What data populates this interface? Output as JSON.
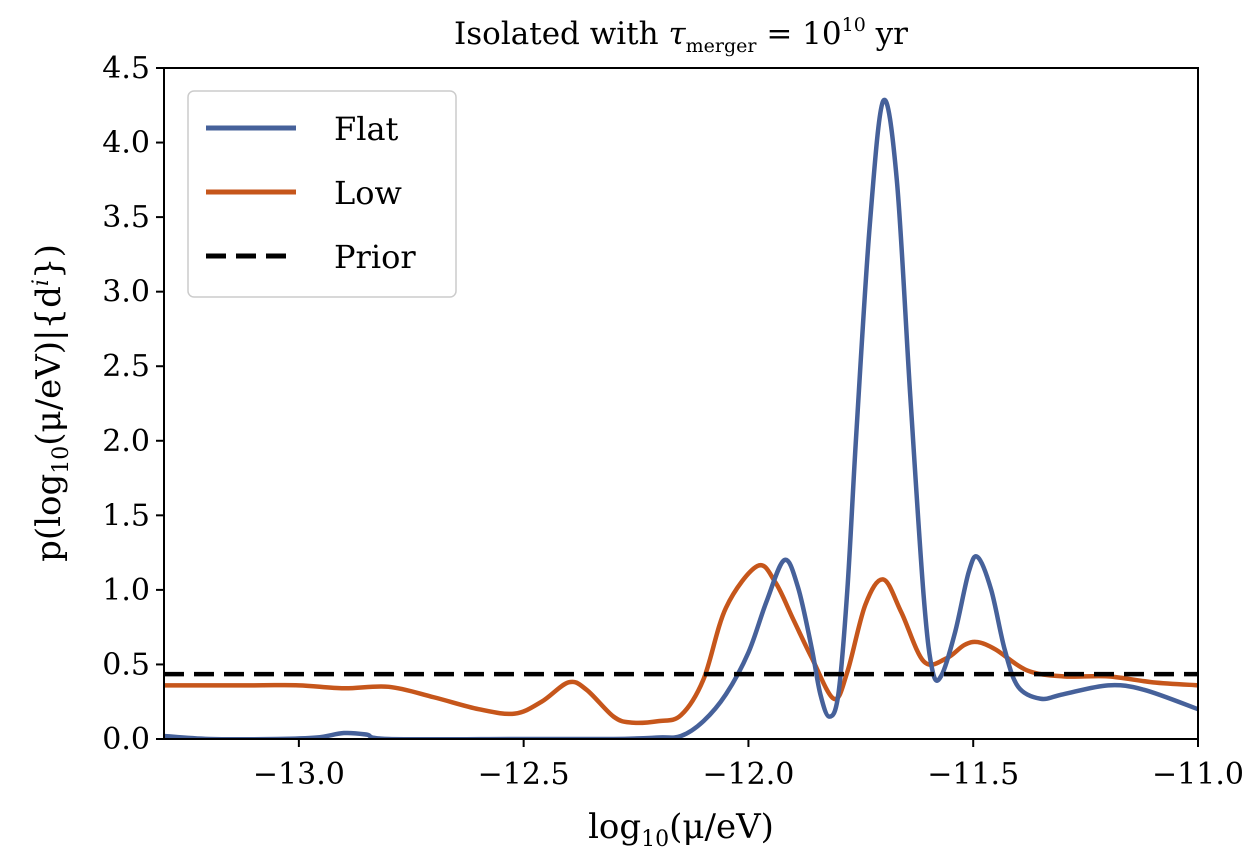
{
  "chart_data": {
    "type": "line",
    "title": {
      "prefix": "Isolated with ",
      "tau": "τ",
      "tau_sub": "merger",
      "eq": " = 10",
      "exp": "10",
      "unit": " yr"
    },
    "xlabel": {
      "pre": "log",
      "sub": "10",
      "post": "(μ/eV)"
    },
    "ylabel": {
      "pre": "p(log",
      "sub": "10",
      "mid": "(μ/eV)|{d",
      "sup": "i",
      "post": "})"
    },
    "xlim": [
      -13.3,
      -11.0
    ],
    "ylim": [
      0.0,
      4.5
    ],
    "xticks": [
      -13.0,
      -12.5,
      -12.0,
      -11.5,
      -11.0
    ],
    "xtick_labels": [
      "−13.0",
      "−12.5",
      "−12.0",
      "−11.5",
      "−11.0"
    ],
    "yticks": [
      0.0,
      0.5,
      1.0,
      1.5,
      2.0,
      2.5,
      3.0,
      3.5,
      4.0,
      4.5
    ],
    "ytick_labels": [
      "0.0",
      "0.5",
      "1.0",
      "1.5",
      "2.0",
      "2.5",
      "3.0",
      "3.5",
      "4.0",
      "4.5"
    ],
    "grid": false,
    "legend_position": "top-left",
    "series": [
      {
        "name": "Flat",
        "color": "#46619a",
        "style": "solid",
        "points": [
          [
            -13.3,
            0.02
          ],
          [
            -13.2,
            0.0
          ],
          [
            -13.05,
            0.0
          ],
          [
            -12.96,
            0.01
          ],
          [
            -12.9,
            0.04
          ],
          [
            -12.85,
            0.03
          ],
          [
            -12.8,
            0.0
          ],
          [
            -12.5,
            0.0
          ],
          [
            -12.3,
            0.0
          ],
          [
            -12.2,
            0.01
          ],
          [
            -12.15,
            0.02
          ],
          [
            -12.1,
            0.12
          ],
          [
            -12.05,
            0.3
          ],
          [
            -12.0,
            0.58
          ],
          [
            -11.96,
            0.92
          ],
          [
            -11.92,
            1.2
          ],
          [
            -11.89,
            1.02
          ],
          [
            -11.86,
            0.62
          ],
          [
            -11.84,
            0.3
          ],
          [
            -11.82,
            0.15
          ],
          [
            -11.8,
            0.3
          ],
          [
            -11.78,
            1.0
          ],
          [
            -11.76,
            2.05
          ],
          [
            -11.73,
            3.45
          ],
          [
            -11.7,
            4.28
          ],
          [
            -11.67,
            3.75
          ],
          [
            -11.64,
            2.3
          ],
          [
            -11.61,
            0.95
          ],
          [
            -11.59,
            0.45
          ],
          [
            -11.57,
            0.43
          ],
          [
            -11.54,
            0.72
          ],
          [
            -11.51,
            1.12
          ],
          [
            -11.49,
            1.22
          ],
          [
            -11.46,
            1.0
          ],
          [
            -11.43,
            0.6
          ],
          [
            -11.4,
            0.35
          ],
          [
            -11.35,
            0.27
          ],
          [
            -11.3,
            0.3
          ],
          [
            -11.2,
            0.36
          ],
          [
            -11.12,
            0.33
          ],
          [
            -11.0,
            0.2
          ]
        ]
      },
      {
        "name": "Low",
        "color": "#c6561b",
        "style": "solid",
        "points": [
          [
            -13.3,
            0.36
          ],
          [
            -13.1,
            0.36
          ],
          [
            -13.0,
            0.36
          ],
          [
            -12.9,
            0.34
          ],
          [
            -12.8,
            0.35
          ],
          [
            -12.7,
            0.28
          ],
          [
            -12.6,
            0.2
          ],
          [
            -12.52,
            0.17
          ],
          [
            -12.46,
            0.25
          ],
          [
            -12.4,
            0.38
          ],
          [
            -12.36,
            0.33
          ],
          [
            -12.3,
            0.15
          ],
          [
            -12.26,
            0.11
          ],
          [
            -12.2,
            0.12
          ],
          [
            -12.15,
            0.16
          ],
          [
            -12.1,
            0.4
          ],
          [
            -12.05,
            0.88
          ],
          [
            -11.98,
            1.16
          ],
          [
            -11.94,
            1.05
          ],
          [
            -11.9,
            0.8
          ],
          [
            -11.86,
            0.55
          ],
          [
            -11.81,
            0.27
          ],
          [
            -11.78,
            0.45
          ],
          [
            -11.74,
            0.9
          ],
          [
            -11.7,
            1.07
          ],
          [
            -11.66,
            0.85
          ],
          [
            -11.61,
            0.52
          ],
          [
            -11.56,
            0.54
          ],
          [
            -11.52,
            0.63
          ],
          [
            -11.49,
            0.65
          ],
          [
            -11.45,
            0.6
          ],
          [
            -11.38,
            0.46
          ],
          [
            -11.3,
            0.42
          ],
          [
            -11.2,
            0.42
          ],
          [
            -11.1,
            0.38
          ],
          [
            -11.0,
            0.36
          ]
        ]
      },
      {
        "name": "Prior",
        "color": "#000000",
        "style": "dashed",
        "points": [
          [
            -13.3,
            0.435
          ],
          [
            -11.0,
            0.435
          ]
        ]
      }
    ]
  }
}
